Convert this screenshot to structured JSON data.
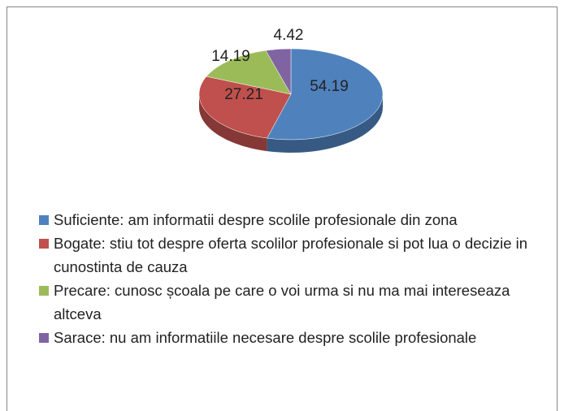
{
  "chart_data": {
    "type": "pie",
    "categories": [
      "Suficiente: am informatii despre scolile profesionale din zona",
      "Bogate: stiu tot despre oferta scolilor profesionale si pot lua o decizie in cunostinta de cauza",
      "Precare: cunosc școala pe care o voi urma si nu ma mai intereseaza altceva",
      "Sarace: nu am informatiile necesare despre scolile profesionale"
    ],
    "values": [
      54.19,
      27.21,
      14.19,
      4.42
    ],
    "colors": [
      "#4f81bd",
      "#c0504d",
      "#9bbb59",
      "#8064a2"
    ],
    "legend": "bottom"
  }
}
